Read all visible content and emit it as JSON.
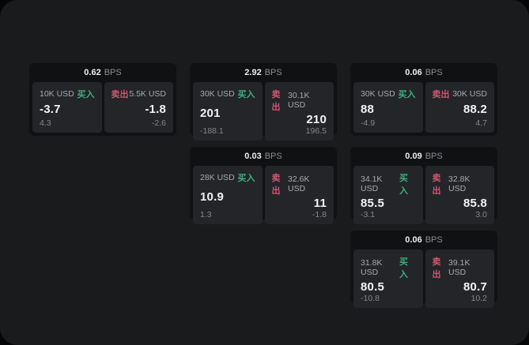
{
  "labels": {
    "bps_unit": "BPS",
    "buy": "买入",
    "sell": "卖出"
  },
  "colors": {
    "page_bg": "#1a1b1d",
    "card_bg": "#101113",
    "panel_bg": "#232528",
    "buy_green": "#3fae7c",
    "sell_red": "#d15570"
  },
  "cards": [
    {
      "bps": "0.62",
      "buy": {
        "size": "10K USD",
        "value": "-3.7",
        "change": "4.3"
      },
      "sell": {
        "size": "5.5K USD",
        "value": "-1.8",
        "change": "-2.6"
      }
    },
    {
      "bps": "2.92",
      "buy": {
        "size": "30K USD",
        "value": "201",
        "change": "-188.1"
      },
      "sell": {
        "size": "30.1K USD",
        "value": "210",
        "change": "196.5"
      }
    },
    {
      "bps": "0.06",
      "buy": {
        "size": "30K USD",
        "value": "88",
        "change": "-4.9"
      },
      "sell": {
        "size": "30K USD",
        "value": "88.2",
        "change": "4.7"
      }
    },
    {
      "bps": "0.03",
      "buy": {
        "size": "28K USD",
        "value": "10.9",
        "change": "1.3"
      },
      "sell": {
        "size": "32.6K USD",
        "value": "11",
        "change": "-1.8"
      }
    },
    {
      "bps": "0.09",
      "buy": {
        "size": "34.1K USD",
        "value": "85.5",
        "change": "-3.1"
      },
      "sell": {
        "size": "32.8K USD",
        "value": "85.8",
        "change": "3.0"
      }
    },
    {
      "bps": "0.06",
      "buy": {
        "size": "31.8K USD",
        "value": "80.5",
        "change": "-10.8"
      },
      "sell": {
        "size": "39.1K USD",
        "value": "80.7",
        "change": "10.2"
      }
    }
  ]
}
